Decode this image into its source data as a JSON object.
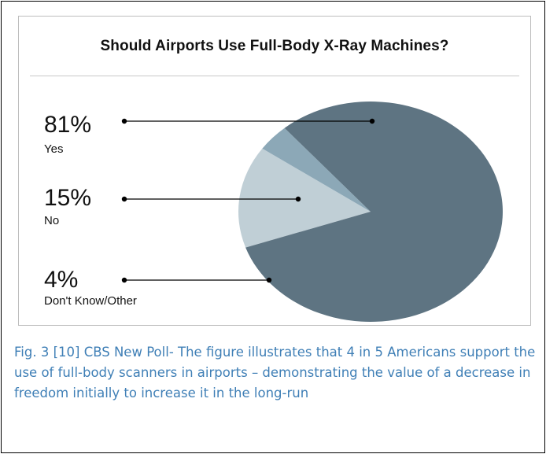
{
  "chart_data": {
    "type": "pie",
    "title": "Should Airports Use Full-Body X-Ray Machines?",
    "slices": [
      {
        "percent_label": "81%",
        "label": "Yes",
        "value": 81,
        "color": "#5e7482"
      },
      {
        "percent_label": "15%",
        "label": "No",
        "value": 15,
        "color": "#c0cfd6"
      },
      {
        "percent_label": "4%",
        "label": "Don't Know/Other",
        "value": 4,
        "color": "#8ca8b7"
      }
    ],
    "legend": "left"
  },
  "caption": "Fig. 3 [10] CBS New Poll- The figure illustrates that 4 in 5 Americans support the use of full-body scanners in airports – demonstrating the value of a decrease in freedom initially to increase it in the long-run"
}
